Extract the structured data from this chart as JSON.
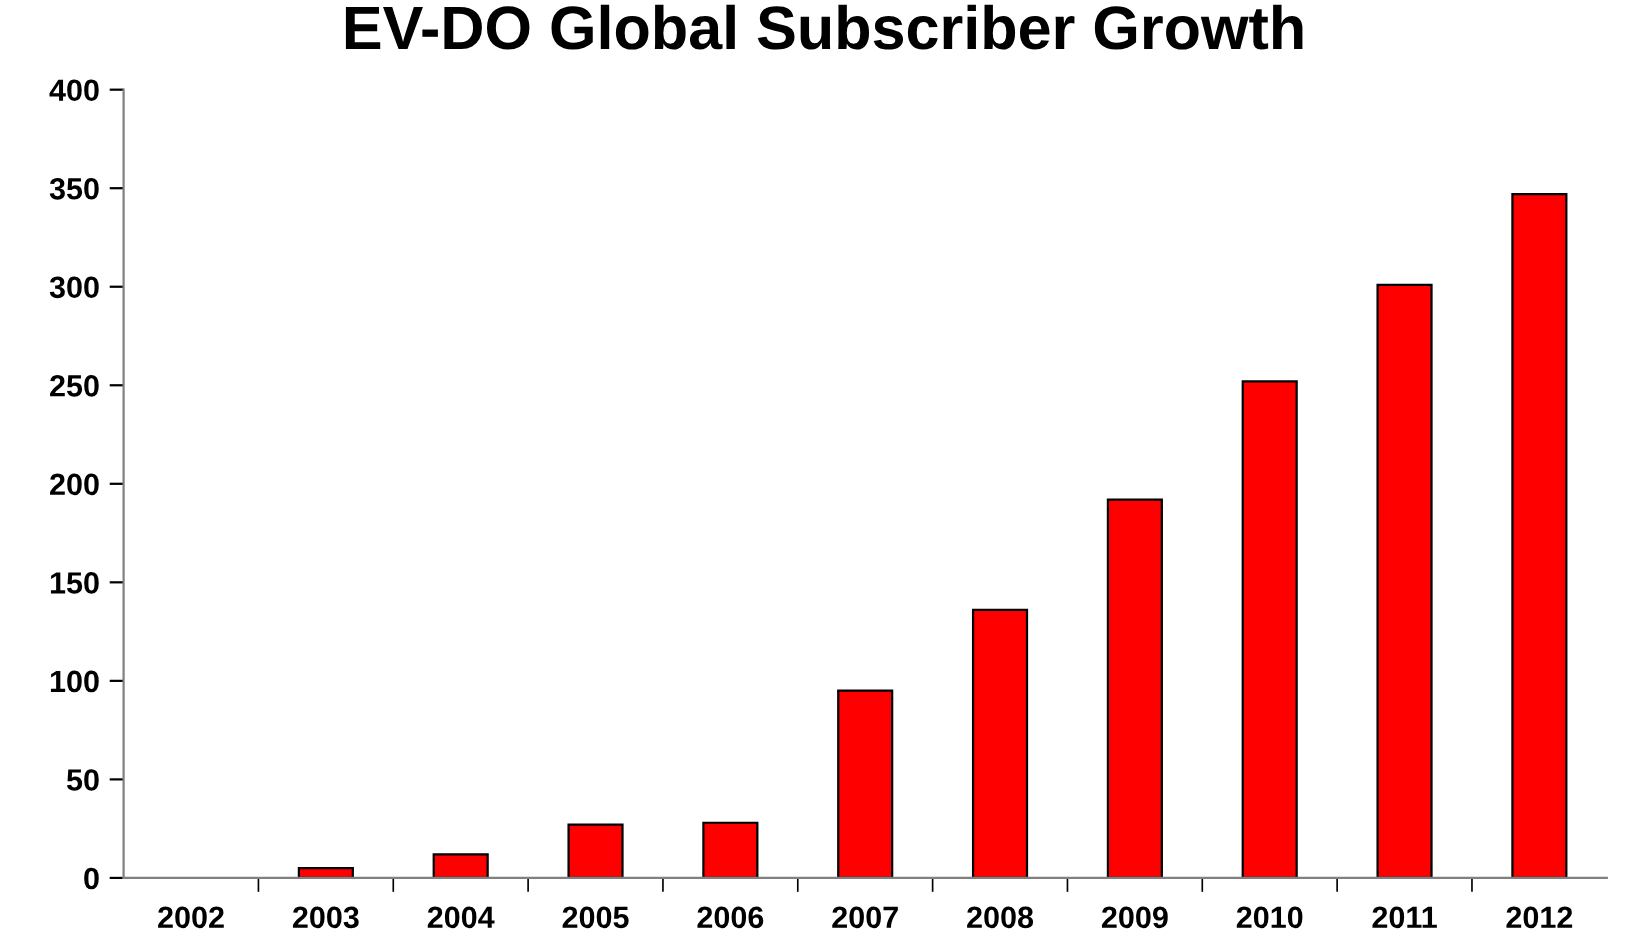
{
  "chart_data": {
    "type": "bar",
    "title": "EV-DO Global Subscriber Growth",
    "categories": [
      "2002",
      "2003",
      "2004",
      "2005",
      "2006",
      "2007",
      "2008",
      "2009",
      "2010",
      "2011",
      "2012"
    ],
    "values": [
      null,
      5,
      12,
      27,
      28,
      95,
      136,
      192,
      252,
      301,
      347
    ],
    "color": "#ff0000",
    "ylim": [
      0,
      400
    ],
    "yticks": [
      0,
      50,
      100,
      150,
      200,
      250,
      300,
      350,
      400
    ],
    "grid": false,
    "legend": false
  }
}
